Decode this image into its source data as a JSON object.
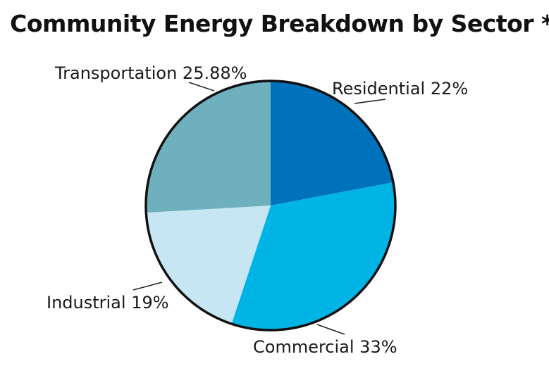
{
  "chart_data": {
    "type": "pie",
    "title": "Community Energy Breakdown by Sector *",
    "slices": [
      {
        "label": "Residential",
        "value": 22,
        "value_text": "22%",
        "color": "#0072bc"
      },
      {
        "label": "Commercial",
        "value": 33,
        "value_text": "33%",
        "color": "#00b4e6"
      },
      {
        "label": "Industrial",
        "value": 19,
        "value_text": "19%",
        "color": "#c6e6f3"
      },
      {
        "label": "Transportation",
        "value": 25.88,
        "value_text": "25.88%",
        "color": "#6fb0be"
      }
    ],
    "start": "12 o'clock",
    "direction": "clockwise",
    "legend": "none",
    "labels": "outside with leader lines",
    "outline_color": "#111111"
  }
}
